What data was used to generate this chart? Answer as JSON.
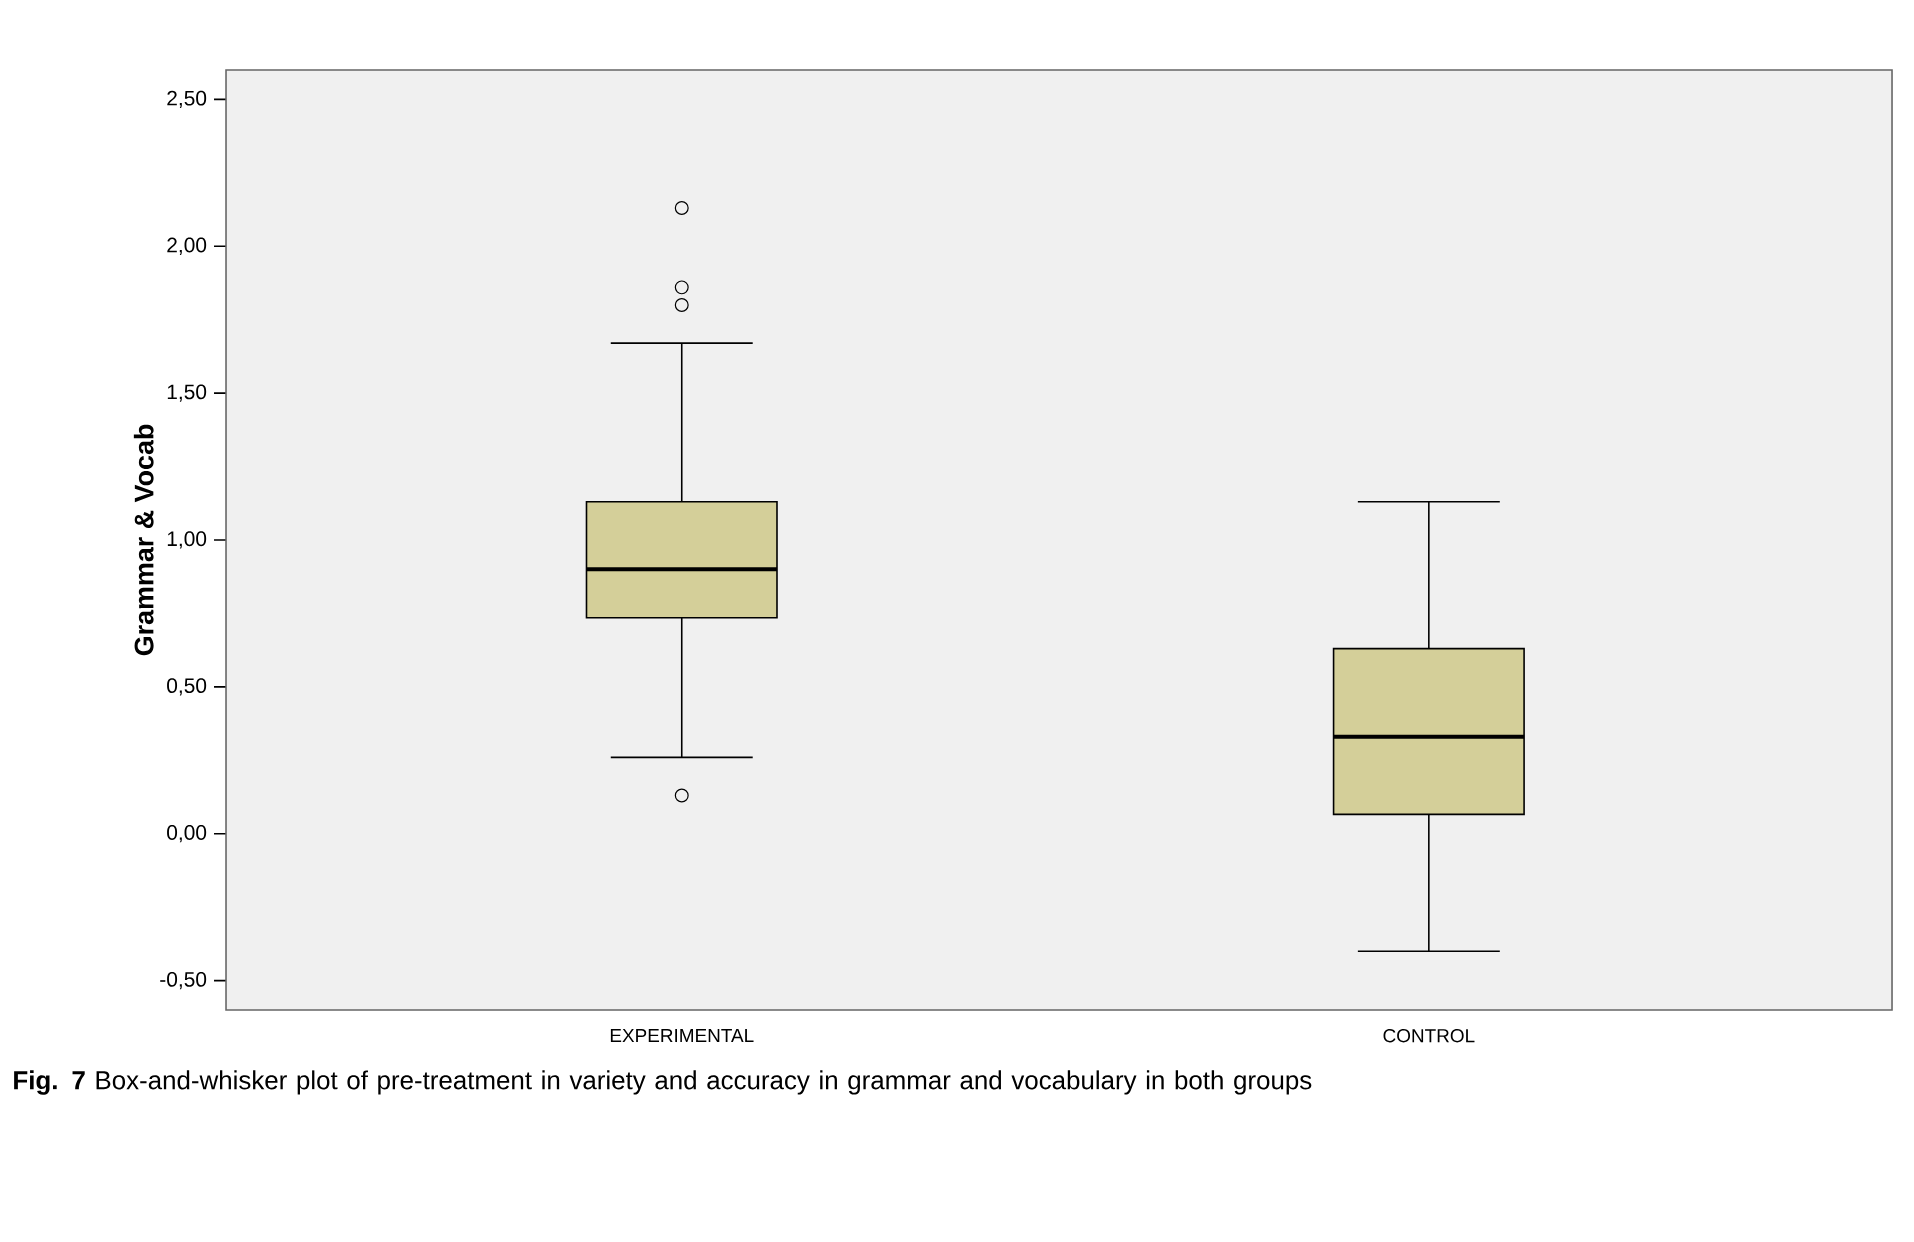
{
  "chart_data": {
    "type": "box",
    "ylabel": "Grammar & Vocab",
    "categories": [
      "EXPERIMENTAL",
      "CONTROL"
    ],
    "series": [
      {
        "color": "#d4cf99",
        "boxes": [
          {
            "low": 0.26,
            "q1": 0.735,
            "median": 0.9,
            "q3": 1.13,
            "high": 1.67,
            "outliers": [
              2.13,
              1.86,
              1.8,
              0.13
            ]
          },
          {
            "low": -0.4,
            "q1": 0.066,
            "median": 0.33,
            "q3": 0.63,
            "high": 1.13
          }
        ]
      }
    ],
    "ylim": [
      -0.6,
      2.6
    ],
    "yticks": [
      {
        "value": -0.5,
        "label": "-0,50"
      },
      {
        "value": 0,
        "label": "0,00"
      },
      {
        "value": 0.5,
        "label": "0,50"
      },
      {
        "value": 1,
        "label": "1,00"
      },
      {
        "value": 1.5,
        "label": "1,50"
      },
      {
        "value": 2,
        "label": "2,00"
      },
      {
        "value": 2.5,
        "label": "2,50"
      }
    ],
    "grid": false,
    "annotations": [
      "**Fig. 7** Box-and-whisker plot of pre-treatment in variety and accuracy in grammar and vocabulary in both groups"
    ]
  }
}
